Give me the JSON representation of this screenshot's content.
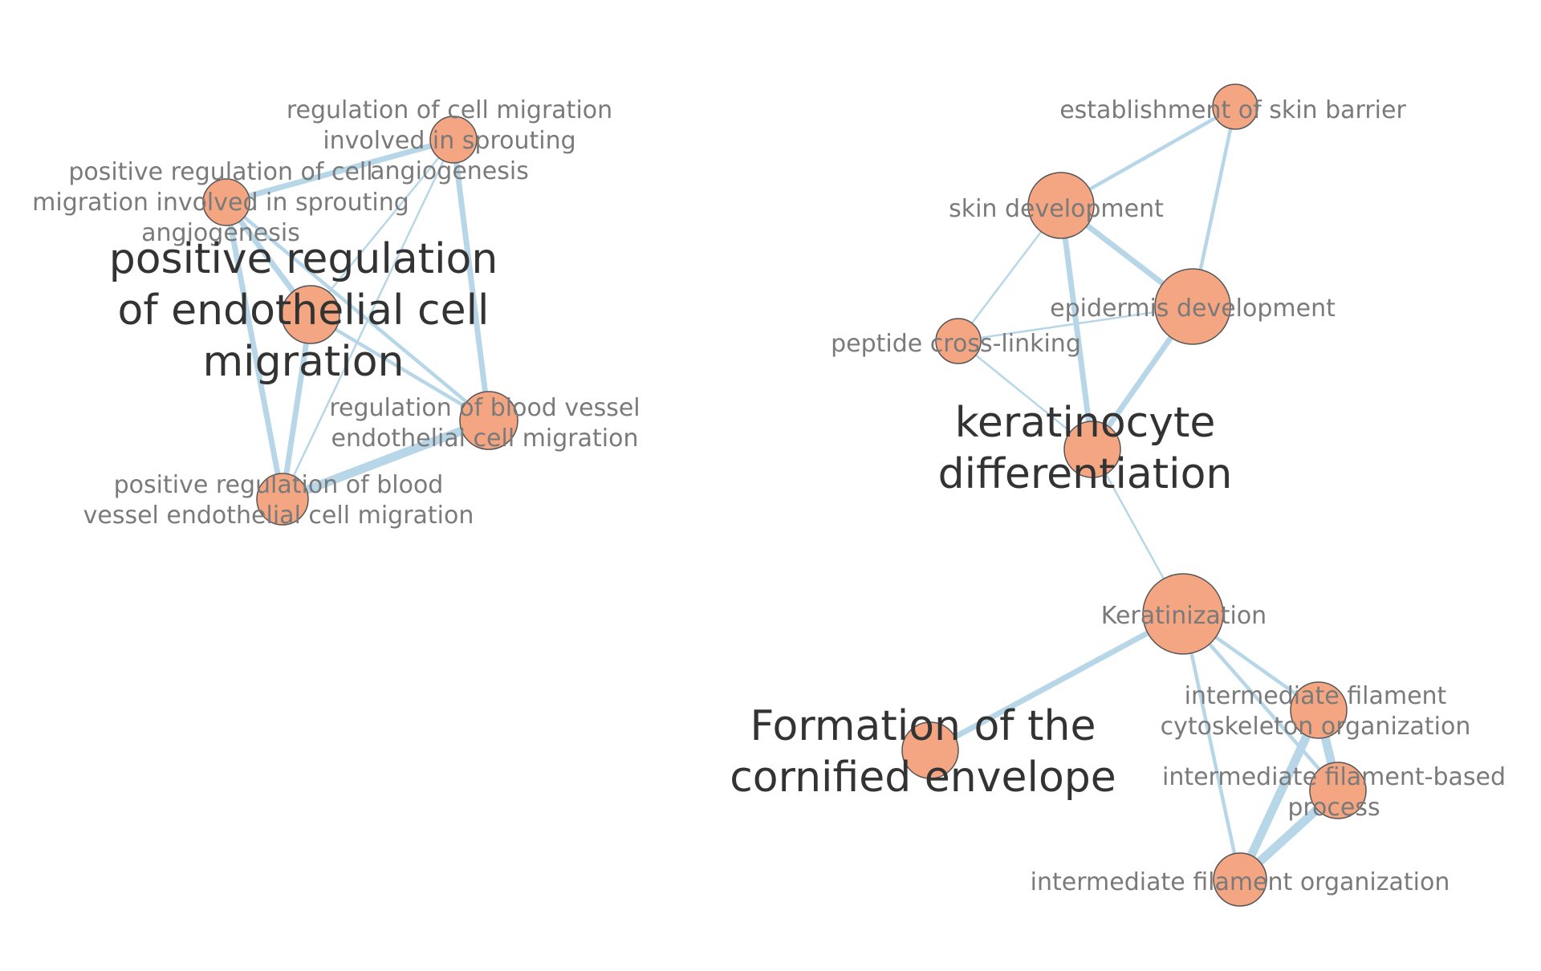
{
  "colors": {
    "node_fill": "#f4a582",
    "node_stroke": "#555555",
    "edge": "#b7d7e8",
    "label_small": "#7a7a7a",
    "label_big": "#333333",
    "background": "#ffffff"
  },
  "nodes": [
    {
      "id": "reg_cell_mig_sprout",
      "label_lines": [
        "regulation of cell migration",
        "involved in sprouting",
        "angiogenesis"
      ],
      "size": "small"
    },
    {
      "id": "pos_reg_cell_mig_sprout",
      "label_lines": [
        "positive regulation of cell",
        "migration involved in sprouting",
        "angiogenesis"
      ],
      "size": "small"
    },
    {
      "id": "pos_reg_endo_mig",
      "label_lines": [
        "positive regulation",
        "of endothelial cell",
        "migration"
      ],
      "size": "big"
    },
    {
      "id": "reg_bv_endo_mig",
      "label_lines": [
        "regulation of blood vessel",
        "endothelial cell migration"
      ],
      "size": "small"
    },
    {
      "id": "pos_reg_bv_endo_mig",
      "label_lines": [
        "positive regulation of blood",
        "vessel endothelial cell migration"
      ],
      "size": "small"
    },
    {
      "id": "skin_barrier",
      "label_lines": [
        "establishment of skin barrier"
      ],
      "size": "small"
    },
    {
      "id": "skin_dev",
      "label_lines": [
        "skin development"
      ],
      "size": "small"
    },
    {
      "id": "epidermis_dev",
      "label_lines": [
        "epidermis development"
      ],
      "size": "small"
    },
    {
      "id": "peptide_xlink",
      "label_lines": [
        "peptide cross-linking"
      ],
      "size": "small"
    },
    {
      "id": "keratinocyte_diff",
      "label_lines": [
        "keratinocyte",
        "differentiation"
      ],
      "size": "big"
    },
    {
      "id": "keratinization",
      "label_lines": [
        "Keratinization"
      ],
      "size": "small"
    },
    {
      "id": "cornified_env",
      "label_lines": [
        "Formation of the",
        "cornified envelope"
      ],
      "size": "big"
    },
    {
      "id": "if_cytoskeleton",
      "label_lines": [
        "intermediate filament",
        "cytoskeleton organization"
      ],
      "size": "small"
    },
    {
      "id": "if_based_process",
      "label_lines": [
        "intermediate filament-based",
        "process"
      ],
      "size": "small"
    },
    {
      "id": "if_organization",
      "label_lines": [
        "intermediate filament organization"
      ],
      "size": "small"
    }
  ],
  "edges": [
    {
      "source": "pos_reg_cell_mig_sprout",
      "target": "reg_cell_mig_sprout",
      "weight": "thick"
    },
    {
      "source": "pos_reg_cell_mig_sprout",
      "target": "pos_reg_endo_mig",
      "weight": "thick"
    },
    {
      "source": "pos_reg_cell_mig_sprout",
      "target": "reg_bv_endo_mig",
      "weight": "medium"
    },
    {
      "source": "pos_reg_cell_mig_sprout",
      "target": "pos_reg_bv_endo_mig",
      "weight": "thick"
    },
    {
      "source": "reg_cell_mig_sprout",
      "target": "reg_bv_endo_mig",
      "weight": "thick"
    },
    {
      "source": "reg_cell_mig_sprout",
      "target": "pos_reg_endo_mig",
      "weight": "thin"
    },
    {
      "source": "reg_cell_mig_sprout",
      "target": "pos_reg_bv_endo_mig",
      "weight": "thin"
    },
    {
      "source": "pos_reg_endo_mig",
      "target": "reg_bv_endo_mig",
      "weight": "medium"
    },
    {
      "source": "pos_reg_endo_mig",
      "target": "pos_reg_bv_endo_mig",
      "weight": "thick"
    },
    {
      "source": "reg_bv_endo_mig",
      "target": "pos_reg_bv_endo_mig",
      "weight": "xthick"
    },
    {
      "source": "skin_barrier",
      "target": "skin_dev",
      "weight": "medium"
    },
    {
      "source": "skin_barrier",
      "target": "epidermis_dev",
      "weight": "medium"
    },
    {
      "source": "skin_dev",
      "target": "epidermis_dev",
      "weight": "thick"
    },
    {
      "source": "skin_dev",
      "target": "keratinocyte_diff",
      "weight": "thick"
    },
    {
      "source": "skin_dev",
      "target": "peptide_xlink",
      "weight": "thin"
    },
    {
      "source": "epidermis_dev",
      "target": "keratinocyte_diff",
      "weight": "thick"
    },
    {
      "source": "epidermis_dev",
      "target": "peptide_xlink",
      "weight": "thin"
    },
    {
      "source": "peptide_xlink",
      "target": "keratinocyte_diff",
      "weight": "thin"
    },
    {
      "source": "keratinocyte_diff",
      "target": "keratinization",
      "weight": "thin"
    },
    {
      "source": "keratinization",
      "target": "cornified_env",
      "weight": "thick"
    },
    {
      "source": "keratinization",
      "target": "if_cytoskeleton",
      "weight": "medium"
    },
    {
      "source": "keratinization",
      "target": "if_based_process",
      "weight": "medium"
    },
    {
      "source": "keratinization",
      "target": "if_organization",
      "weight": "medium"
    },
    {
      "source": "if_cytoskeleton",
      "target": "if_based_process",
      "weight": "xthick"
    },
    {
      "source": "if_cytoskeleton",
      "target": "if_organization",
      "weight": "xthick"
    },
    {
      "source": "if_based_process",
      "target": "if_organization",
      "weight": "xthick"
    }
  ]
}
